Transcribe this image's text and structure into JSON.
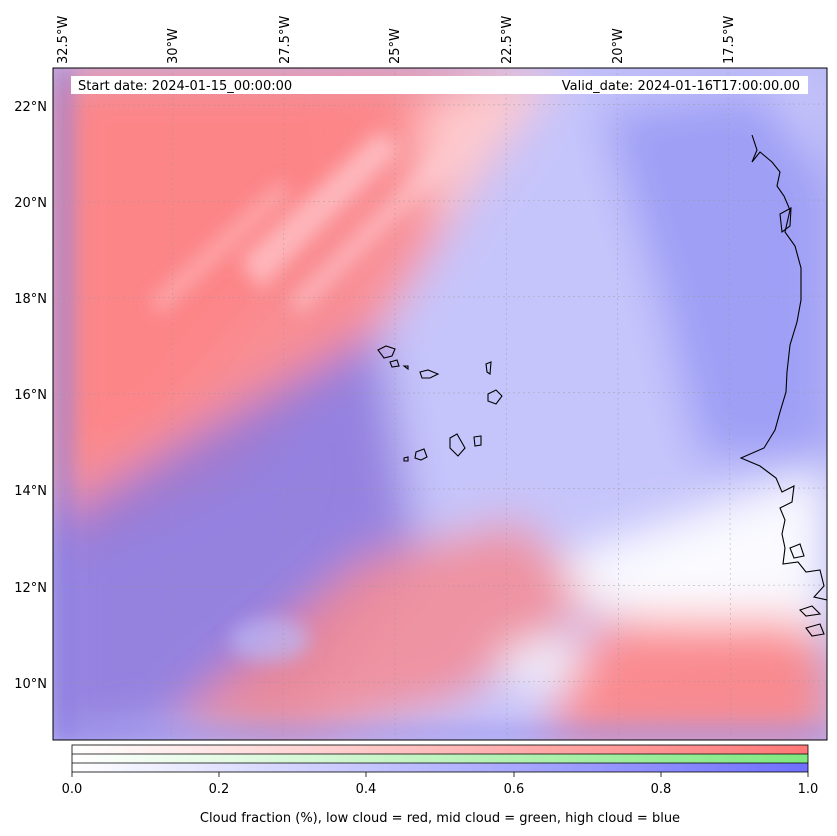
{
  "map": {
    "start_label": "Start date: 2024-01-15_00:00:00",
    "valid_label": "Valid_date: 2024-01-16T17:00:00.00",
    "lon_labels": [
      "32.5°W",
      "30°W",
      "27.5°W",
      "25°W",
      "22.5°W",
      "20°W",
      "17.5°W"
    ],
    "lat_labels": [
      "22°N",
      "20°N",
      "18°N",
      "16°N",
      "14°N",
      "12°N",
      "10°N"
    ],
    "gridlines": true,
    "coastline_color": "#000000"
  },
  "colorbar": {
    "ticks": [
      "0.0",
      "0.2",
      "0.4",
      "0.6",
      "0.8",
      "1.0"
    ],
    "low_color": "#ff7777",
    "mid_color": "#7fe87f",
    "high_color": "#6f6fff",
    "label": "Cloud fraction (%), low cloud = red, mid cloud = green, high cloud = blue"
  }
}
